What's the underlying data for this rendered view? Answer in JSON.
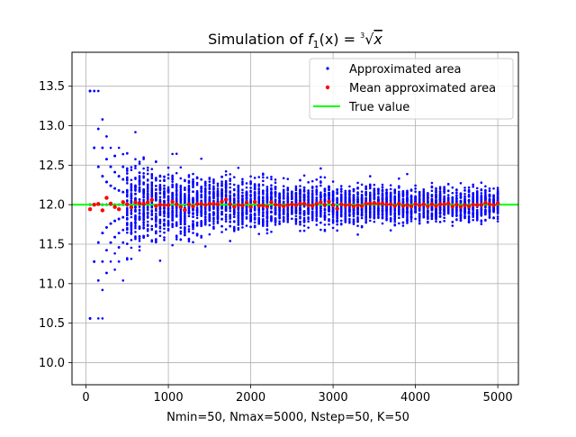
{
  "chart_data": {
    "type": "scatter",
    "title": {
      "prefix": "Simulation of ",
      "fname": "f",
      "fsub": "1",
      "mid": "(x) = ",
      "root_index": "3",
      "radicand": "x"
    },
    "xlabel": "Nmin=50, Nmax=5000, Nstep=50, K=50",
    "ylabel": "",
    "xlim": [
      -170,
      5250
    ],
    "ylim": [
      9.72,
      13.93
    ],
    "x_ticks": [
      0,
      1000,
      2000,
      3000,
      4000,
      5000
    ],
    "x_tick_labels": [
      "0",
      "1000",
      "2000",
      "3000",
      "4000",
      "5000"
    ],
    "y_ticks": [
      10.0,
      10.5,
      11.0,
      11.5,
      12.0,
      12.5,
      13.0,
      13.5
    ],
    "y_tick_labels": [
      "10.0",
      "10.5",
      "11.0",
      "11.5",
      "12.0",
      "12.5",
      "13.0",
      "13.5"
    ],
    "grid": true,
    "legend_position": "top-right",
    "true_value": 12.0,
    "simulation": {
      "n_min": 50,
      "n_max": 5000,
      "n_step": 50,
      "k": 50,
      "spread_coefficient": 6.4
    },
    "series": [
      {
        "name": "Approximated area",
        "kind": "scatter",
        "color": "#0000ff"
      },
      {
        "name": "Mean approximated area",
        "kind": "scatter",
        "color": "#ff0000"
      },
      {
        "name": "True value",
        "kind": "line",
        "color": "#00ff00",
        "value": 12.0
      }
    ]
  }
}
